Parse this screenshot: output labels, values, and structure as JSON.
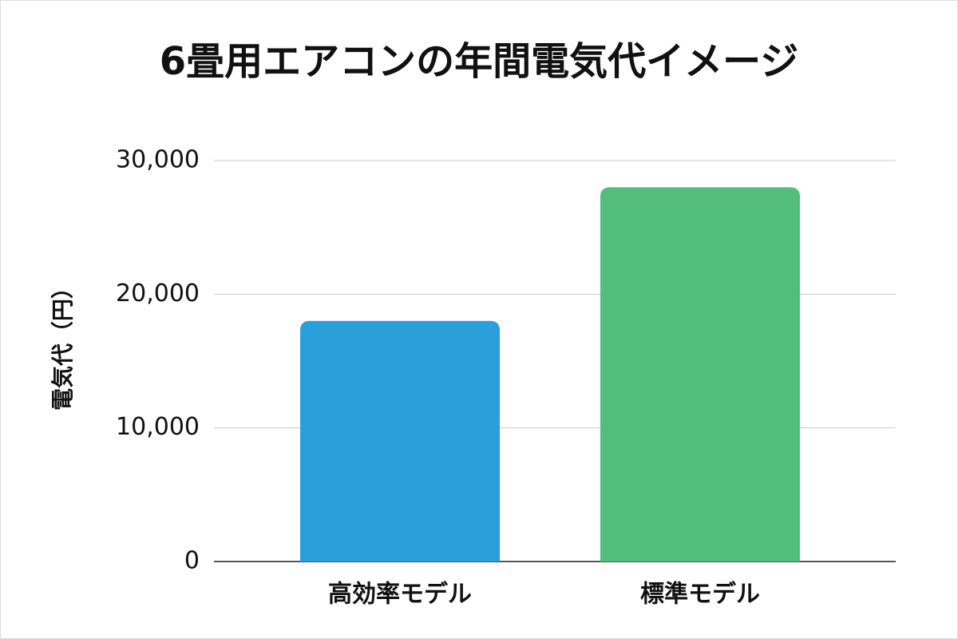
{
  "chart_data": {
    "type": "bar",
    "title": "6畳用エアコンの年間電気代イメージ",
    "y_label": "電気代（円）",
    "categories": [
      "高効率モデル",
      "標準モデル"
    ],
    "values": [
      18000,
      28000
    ],
    "colors": [
      "#2a9fd9",
      "#52bd7c"
    ],
    "ylim": [
      0,
      30000
    ],
    "yticks": [
      0,
      {
        "value": 10000,
        "label": "10,000"
      },
      {
        "value": 20000,
        "label": "20,000"
      },
      {
        "value": 30000,
        "label": "30,000"
      }
    ],
    "grid": true
  }
}
